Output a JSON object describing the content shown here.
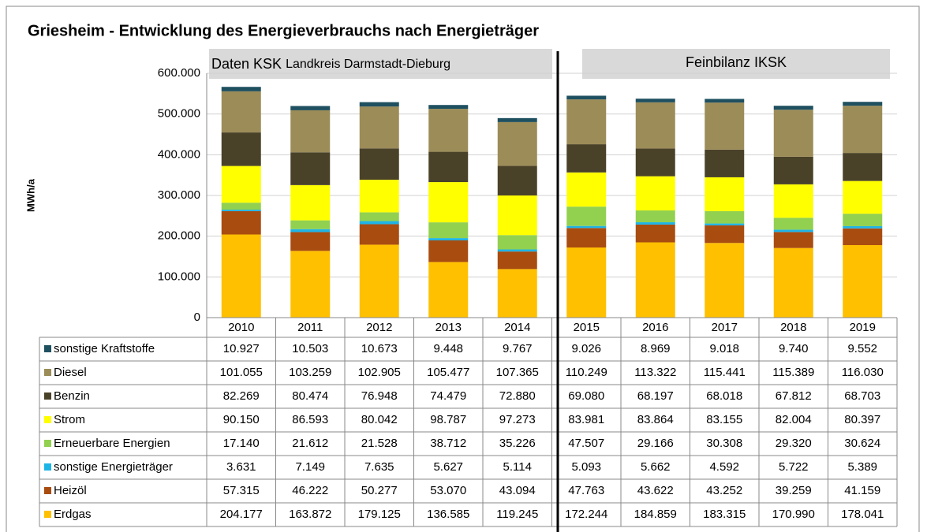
{
  "chart_data": {
    "type": "bar",
    "stacked": true,
    "title": "Griesheim -  Entwicklung des Energieverbrauchs nach Energieträger",
    "y_label": "MWh/a",
    "annotations": [
      "Daten KSK",
      "Landkreis Darmstadt-Dieburg",
      "Feinbilanz IKSK"
    ],
    "categories": [
      "2010",
      "2011",
      "2012",
      "2013",
      "2014",
      "2015",
      "2016",
      "2017",
      "2018",
      "2019"
    ],
    "ylim": [
      0,
      600000
    ],
    "yticks": [
      0,
      {
        "value": 100000,
        "label": "100.000"
      },
      {
        "value": 200000,
        "label": "200.000"
      },
      {
        "value": 300000,
        "label": "300.000"
      },
      {
        "value": 400000,
        "label": "400.000"
      },
      {
        "value": 500000,
        "label": "500.000"
      },
      {
        "value": 600000,
        "label": "600.000"
      }
    ],
    "grid": true,
    "series": [
      {
        "name": "Erdgas",
        "color": "#ffc000",
        "values": [
          204177,
          163872,
          179125,
          136585,
          119245,
          172244,
          184859,
          183315,
          170990,
          178041
        ],
        "value_labels": [
          "204.177",
          "163.872",
          "179.125",
          "136.585",
          "119.245",
          "172.244",
          "184.859",
          "183.315",
          "170.990",
          "178.041"
        ]
      },
      {
        "name": "Heizöl",
        "color": "#a94c10",
        "values": [
          57315,
          46222,
          50277,
          53070,
          43094,
          47763,
          43622,
          43252,
          39259,
          41159
        ],
        "value_labels": [
          "57.315",
          "46.222",
          "50.277",
          "53.070",
          "43.094",
          "47.763",
          "43.622",
          "43.252",
          "39.259",
          "41.159"
        ]
      },
      {
        "name": "sonstige Energieträger",
        "color": "#1fb4e6",
        "values": [
          3631,
          7149,
          7635,
          5627,
          5114,
          5093,
          5662,
          4592,
          5722,
          5389
        ],
        "value_labels": [
          "3.631",
          "7.149",
          "7.635",
          "5.627",
          "5.114",
          "5.093",
          "5.662",
          "4.592",
          "5.722",
          "5.389"
        ]
      },
      {
        "name": "Erneuerbare Energien",
        "color": "#92d050",
        "values": [
          17140,
          21612,
          21528,
          38712,
          35226,
          47507,
          29166,
          30308,
          29320,
          30624
        ],
        "value_labels": [
          "17.140",
          "21.612",
          "21.528",
          "38.712",
          "35.226",
          "47.507",
          "29.166",
          "30.308",
          "29.320",
          "30.624"
        ]
      },
      {
        "name": "Strom",
        "color": "#ffff00",
        "values": [
          90150,
          86593,
          80042,
          98787,
          97273,
          83981,
          83864,
          83155,
          82004,
          80397
        ],
        "value_labels": [
          "90.150",
          "86.593",
          "80.042",
          "98.787",
          "97.273",
          "83.981",
          "83.864",
          "83.155",
          "82.004",
          "80.397"
        ]
      },
      {
        "name": "Benzin",
        "color": "#4a4228",
        "values": [
          82269,
          80474,
          76948,
          74479,
          72880,
          69080,
          68197,
          68018,
          67812,
          68703
        ],
        "value_labels": [
          "82.269",
          "80.474",
          "76.948",
          "74.479",
          "72.880",
          "69.080",
          "68.197",
          "68.018",
          "67.812",
          "68.703"
        ]
      },
      {
        "name": "Diesel",
        "color": "#9c8c58",
        "values": [
          101055,
          103259,
          102905,
          105477,
          107365,
          110249,
          113322,
          115441,
          115389,
          116030
        ],
        "value_labels": [
          "101.055",
          "103.259",
          "102.905",
          "105.477",
          "107.365",
          "110.249",
          "113.322",
          "115.441",
          "115.389",
          "116.030"
        ]
      },
      {
        "name": "sonstige Kraftstoffe",
        "color": "#1f5060",
        "values": [
          10927,
          10503,
          10673,
          9448,
          9767,
          9026,
          8969,
          9018,
          9740,
          9552
        ],
        "value_labels": [
          "10.927",
          "10.503",
          "10.673",
          "9.448",
          "9.767",
          "9.026",
          "8.969",
          "9.018",
          "9.740",
          "9.552"
        ]
      }
    ]
  }
}
